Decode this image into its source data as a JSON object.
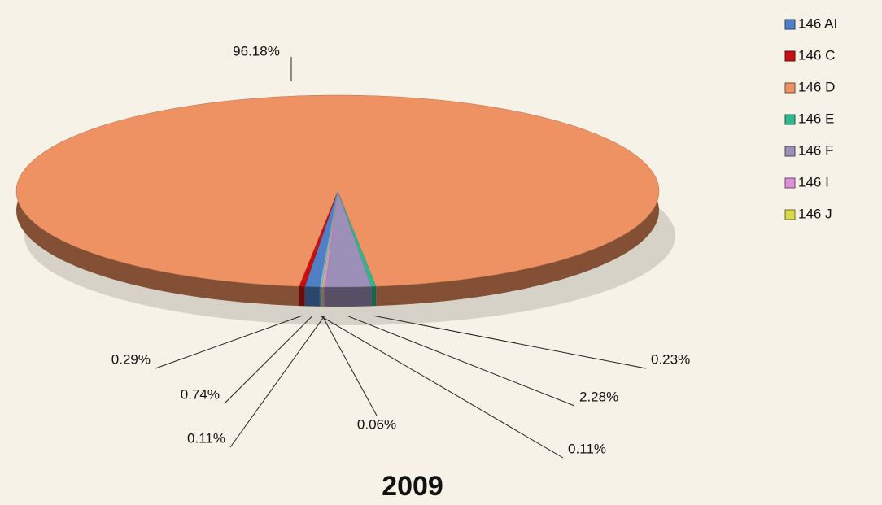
{
  "chart_data": {
    "type": "pie",
    "title": "2009",
    "categories": [
      "146 AI",
      "146 C",
      "146 D",
      "146 E",
      "146 F",
      "146 I",
      "146 J",
      null
    ],
    "values": [
      0.74,
      0.29,
      96.18,
      0.23,
      2.28,
      0.11,
      0.06,
      0.11
    ],
    "value_labels": [
      "0.74%",
      "0.29%",
      "96.18%",
      "0.23%",
      "2.28%",
      "0.11%",
      "0.06%",
      "0.11%"
    ],
    "colors": [
      "#4f7fc4",
      "#c81010",
      "#ee9163",
      "#2fb88e",
      "#9c8fb8",
      "#dc90dc",
      "#d8d848",
      "#86b4e0"
    ],
    "legend": "right"
  }
}
